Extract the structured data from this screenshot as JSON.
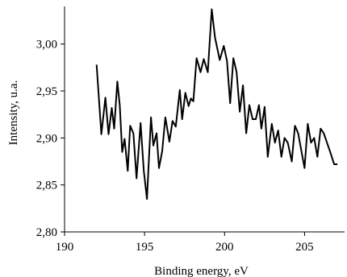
{
  "chart_data": {
    "type": "line",
    "title": "",
    "xlabel": "Binding energy, eV",
    "ylabel": "Intensity, u.a.",
    "xlim": [
      190,
      207.5
    ],
    "ylim": [
      2.8,
      3.04
    ],
    "grid": false,
    "legend": "none",
    "x_ticks": [
      "190",
      "195",
      "200",
      "205"
    ],
    "y_ticks": [
      "2,80",
      "2,85",
      "2,90",
      "2,95",
      "3,00"
    ],
    "line_color": "#000000",
    "series": [
      {
        "x": [
          192.0,
          192.3,
          192.55,
          192.75,
          192.95,
          193.1,
          193.3,
          193.45,
          193.6,
          193.75,
          193.95,
          194.1,
          194.3,
          194.5,
          194.75,
          194.95,
          195.15,
          195.4,
          195.55,
          195.75,
          195.9,
          196.1,
          196.3,
          196.55,
          196.75,
          196.95,
          197.2,
          197.35,
          197.55,
          197.75,
          197.9,
          198.05,
          198.25,
          198.5,
          198.7,
          198.95,
          199.2,
          199.4,
          199.7,
          199.95,
          200.15,
          200.35,
          200.55,
          200.75,
          200.95,
          201.15,
          201.35,
          201.55,
          201.75,
          201.95,
          202.15,
          202.3,
          202.5,
          202.7,
          202.95,
          203.15,
          203.35,
          203.55,
          203.75,
          203.95,
          204.2,
          204.4,
          204.6,
          204.8,
          205.0,
          205.2,
          205.4,
          205.6,
          205.8,
          206.0,
          206.2,
          206.4,
          206.6,
          206.85,
          207.05
        ],
        "y": [
          2.978,
          2.904,
          2.943,
          2.904,
          2.932,
          2.91,
          2.96,
          2.935,
          2.885,
          2.899,
          2.865,
          2.913,
          2.905,
          2.857,
          2.916,
          2.865,
          2.835,
          2.922,
          2.892,
          2.905,
          2.868,
          2.886,
          2.922,
          2.896,
          2.918,
          2.912,
          2.951,
          2.92,
          2.948,
          2.934,
          2.942,
          2.939,
          2.985,
          2.97,
          2.984,
          2.97,
          3.037,
          3.007,
          2.983,
          2.998,
          2.982,
          2.937,
          2.985,
          2.97,
          2.928,
          2.956,
          2.905,
          2.935,
          2.92,
          2.92,
          2.935,
          2.91,
          2.933,
          2.88,
          2.915,
          2.895,
          2.908,
          2.88,
          2.9,
          2.895,
          2.875,
          2.913,
          2.905,
          2.886,
          2.868,
          2.915,
          2.895,
          2.9,
          2.88,
          2.91,
          2.905,
          2.895,
          2.885,
          2.872,
          2.872
        ]
      }
    ]
  }
}
